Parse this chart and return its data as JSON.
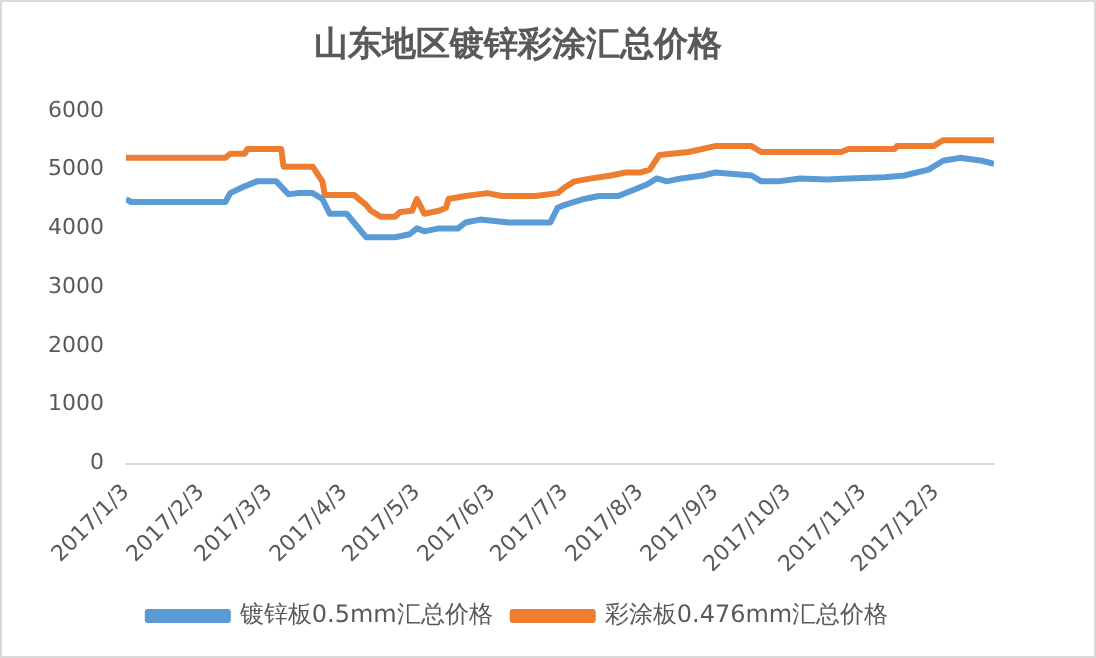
{
  "chart_data": {
    "type": "line",
    "title": "山东地区镀锌彩涂汇总价格",
    "legend": "bottom",
    "grid": false,
    "marker": "none",
    "line_style": "solid",
    "xlim": [
      "2017-01-03",
      "2017-12-27"
    ],
    "xticks": [
      {
        "value": "2017-01-03",
        "label": "2017/1/3"
      },
      {
        "value": "2017-02-03",
        "label": "2017/2/3"
      },
      {
        "value": "2017-03-03",
        "label": "2017/3/3"
      },
      {
        "value": "2017-04-03",
        "label": "2017/4/3"
      },
      {
        "value": "2017-05-03",
        "label": "2017/5/3"
      },
      {
        "value": "2017-06-03",
        "label": "2017/6/3"
      },
      {
        "value": "2017-07-03",
        "label": "2017/7/3"
      },
      {
        "value": "2017-08-03",
        "label": "2017/8/3"
      },
      {
        "value": "2017-09-03",
        "label": "2017/9/3"
      },
      {
        "value": "2017-10-03",
        "label": "2017/10/3"
      },
      {
        "value": "2017-11-03",
        "label": "2017/11/3"
      },
      {
        "value": "2017-12-03",
        "label": "2017/12/3"
      }
    ],
    "ylim": [
      0,
      6000
    ],
    "yticks": [
      0,
      1000,
      2000,
      3000,
      4000,
      5000,
      6000
    ],
    "series": [
      {
        "name": "镀锌板0.5mm汇总价格",
        "color": "#5b9bd5",
        "x": [
          "2017-01-03",
          "2017-01-05",
          "2017-02-13",
          "2017-02-15",
          "2017-02-20",
          "2017-02-26",
          "2017-03-06",
          "2017-03-11",
          "2017-03-15",
          "2017-03-21",
          "2017-03-25",
          "2017-03-28",
          "2017-04-04",
          "2017-04-07",
          "2017-04-12",
          "2017-04-24",
          "2017-04-30",
          "2017-05-03",
          "2017-05-06",
          "2017-05-12",
          "2017-05-20",
          "2017-05-23",
          "2017-05-29",
          "2017-06-10",
          "2017-06-27",
          "2017-06-30",
          "2017-07-03",
          "2017-07-11",
          "2017-07-17",
          "2017-07-25",
          "2017-07-31",
          "2017-08-06",
          "2017-08-10",
          "2017-08-14",
          "2017-08-20",
          "2017-08-29",
          "2017-09-03",
          "2017-09-18",
          "2017-09-22",
          "2017-09-29",
          "2017-10-08",
          "2017-10-19",
          "2017-10-28",
          "2017-11-12",
          "2017-11-20",
          "2017-11-30",
          "2017-12-06",
          "2017-12-13",
          "2017-12-22",
          "2017-12-27"
        ],
        "values": [
          4500,
          4450,
          4450,
          4600,
          4700,
          4800,
          4800,
          4580,
          4600,
          4600,
          4500,
          4250,
          4250,
          4100,
          3850,
          3850,
          3900,
          4000,
          3950,
          4000,
          4000,
          4100,
          4150,
          4100,
          4100,
          4350,
          4400,
          4500,
          4550,
          4550,
          4650,
          4750,
          4850,
          4800,
          4850,
          4900,
          4950,
          4900,
          4800,
          4800,
          4850,
          4830,
          4850,
          4870,
          4900,
          5000,
          5150,
          5200,
          5150,
          5100
        ]
      },
      {
        "name": "彩涂板0.476mm汇总价格",
        "color": "#ed7d31",
        "x": [
          "2017-01-03",
          "2017-02-13",
          "2017-02-15",
          "2017-02-21",
          "2017-02-22",
          "2017-03-08",
          "2017-03-09",
          "2017-03-21",
          "2017-03-25",
          "2017-03-26",
          "2017-04-07",
          "2017-04-12",
          "2017-04-14",
          "2017-04-18",
          "2017-04-24",
          "2017-04-26",
          "2017-05-01",
          "2017-05-03",
          "2017-05-06",
          "2017-05-12",
          "2017-05-15",
          "2017-05-16",
          "2017-05-23",
          "2017-06-01",
          "2017-06-07",
          "2017-06-21",
          "2017-06-30",
          "2017-07-03",
          "2017-07-07",
          "2017-07-14",
          "2017-07-22",
          "2017-07-28",
          "2017-08-03",
          "2017-08-07",
          "2017-08-11",
          "2017-08-23",
          "2017-09-03",
          "2017-09-18",
          "2017-09-22",
          "2017-10-25",
          "2017-10-28",
          "2017-11-16",
          "2017-11-17",
          "2017-12-02",
          "2017-12-06",
          "2017-12-27"
        ],
        "values": [
          5200,
          5200,
          5270,
          5270,
          5350,
          5350,
          5050,
          5050,
          4800,
          4570,
          4570,
          4400,
          4300,
          4200,
          4200,
          4280,
          4300,
          4500,
          4250,
          4300,
          4350,
          4500,
          4550,
          4600,
          4550,
          4550,
          4600,
          4700,
          4800,
          4850,
          4900,
          4950,
          4950,
          5000,
          5250,
          5300,
          5400,
          5400,
          5300,
          5300,
          5350,
          5350,
          5400,
          5400,
          5500,
          5500
        ]
      }
    ]
  }
}
